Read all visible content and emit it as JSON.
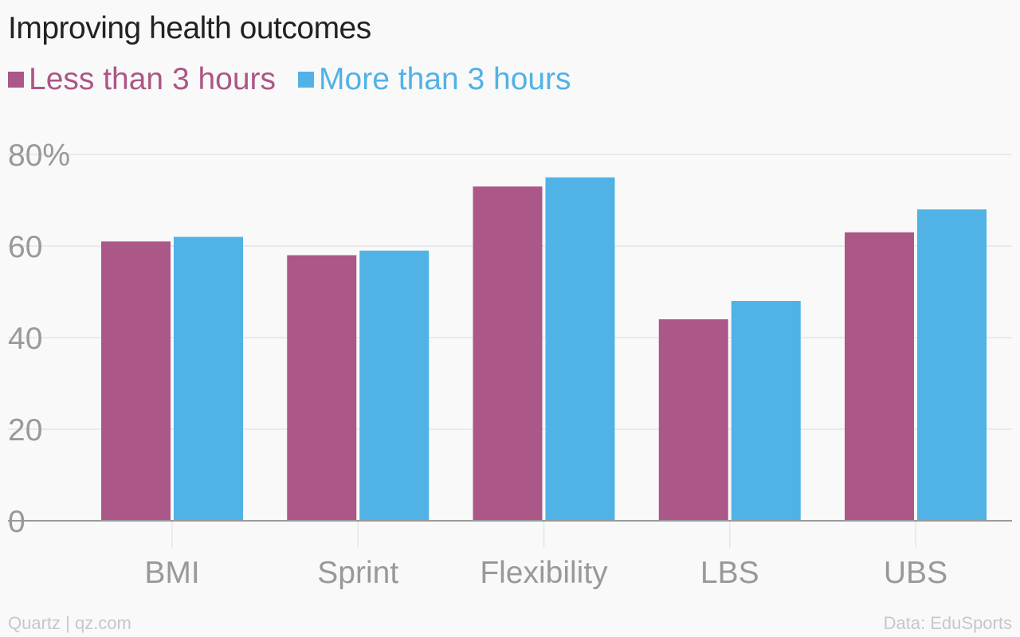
{
  "colors": {
    "series_1": "#ab5787",
    "series_2": "#51b2e5",
    "grid": "#e6e6e6",
    "axis": "#999999",
    "tick_text": "#999999"
  },
  "footer": {
    "source_left": "Quartz | qz.com",
    "source_right": "Data: EduSports"
  },
  "chart_data": {
    "type": "bar",
    "title": "Improving health outcomes",
    "categories": [
      "BMI",
      "Sprint",
      "Flexibility",
      "LBS",
      "UBS"
    ],
    "series": [
      {
        "name": "Less than 3 hours",
        "values": [
          61,
          58,
          73,
          44,
          63
        ]
      },
      {
        "name": "More than 3 hours",
        "values": [
          62,
          59,
          75,
          48,
          68
        ]
      }
    ],
    "ylim": [
      0,
      80
    ],
    "y_ticks": [
      "0",
      "20",
      "40",
      "60",
      "80%"
    ],
    "y_tick_values": [
      0,
      20,
      40,
      60,
      80
    ],
    "grid": true,
    "legend_position": "top-left"
  }
}
